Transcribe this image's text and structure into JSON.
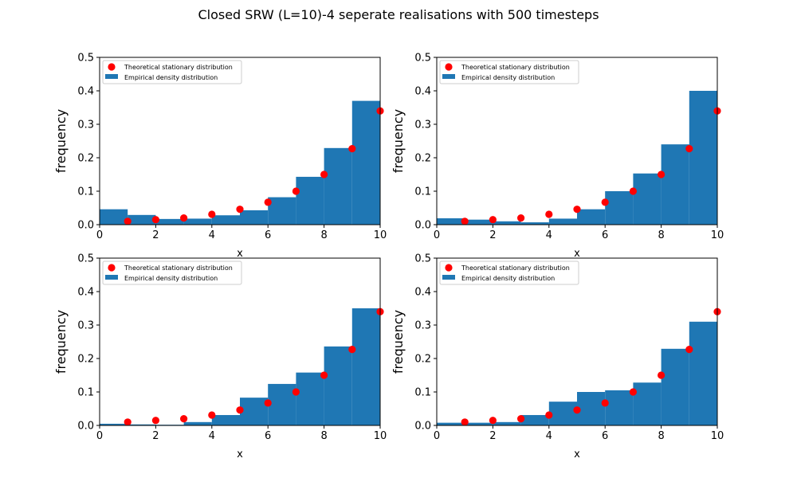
{
  "figure": {
    "title": "Closed SRW (L=10)-4 seperate realisations with 500 timesteps"
  },
  "colors": {
    "bar": "#1f77b4",
    "point": "#ff0000",
    "axis": "#000000"
  },
  "chart_data": [
    {
      "type": "bar",
      "title": "",
      "xlabel": "x",
      "ylabel": "frequency",
      "xlim": [
        0,
        10
      ],
      "ylim": [
        0,
        0.5
      ],
      "xticks": [
        0,
        2,
        4,
        6,
        8,
        10
      ],
      "yticks": [
        0.0,
        0.1,
        0.2,
        0.3,
        0.4,
        0.5
      ],
      "legend": {
        "placement": "top-left",
        "entries": [
          "Theoretical stationary distribution",
          "Empirical density distribution"
        ]
      },
      "bar_edges": [
        0,
        1,
        2,
        3,
        4,
        5,
        6,
        7,
        8,
        9,
        10
      ],
      "bar_heights": [
        0.046,
        0.029,
        0.017,
        0.018,
        0.028,
        0.043,
        0.082,
        0.143,
        0.229,
        0.37
      ],
      "theory_x": [
        1,
        2,
        3,
        4,
        5,
        6,
        7,
        8,
        9,
        10
      ],
      "theory_y": [
        0.01,
        0.015,
        0.02,
        0.031,
        0.046,
        0.067,
        0.1,
        0.15,
        0.227,
        0.34
      ]
    },
    {
      "type": "bar",
      "title": "",
      "xlabel": "x",
      "ylabel": "frequency",
      "xlim": [
        0,
        10
      ],
      "ylim": [
        0,
        0.5
      ],
      "xticks": [
        0,
        2,
        4,
        6,
        8,
        10
      ],
      "yticks": [
        0.0,
        0.1,
        0.2,
        0.3,
        0.4,
        0.5
      ],
      "legend": {
        "placement": "top-left",
        "entries": [
          "Theoretical stationary distribution",
          "Empirical density distribution"
        ]
      },
      "bar_edges": [
        0,
        1,
        2,
        3,
        4,
        5,
        6,
        7,
        8,
        9,
        10
      ],
      "bar_heights": [
        0.019,
        0.015,
        0.01,
        0.007,
        0.018,
        0.046,
        0.1,
        0.153,
        0.24,
        0.4
      ],
      "theory_x": [
        1,
        2,
        3,
        4,
        5,
        6,
        7,
        8,
        9,
        10
      ],
      "theory_y": [
        0.01,
        0.015,
        0.02,
        0.031,
        0.046,
        0.067,
        0.1,
        0.15,
        0.227,
        0.34
      ]
    },
    {
      "type": "bar",
      "title": "",
      "xlabel": "x",
      "ylabel": "frequency",
      "xlim": [
        0,
        10
      ],
      "ylim": [
        0,
        0.5
      ],
      "xticks": [
        0,
        2,
        4,
        6,
        8,
        10
      ],
      "yticks": [
        0.0,
        0.1,
        0.2,
        0.3,
        0.4,
        0.5
      ],
      "legend": {
        "placement": "top-left",
        "entries": [
          "Theoretical stationary distribution",
          "Empirical density distribution"
        ]
      },
      "bar_edges": [
        0,
        1,
        2,
        3,
        4,
        5,
        6,
        7,
        8,
        9,
        10
      ],
      "bar_heights": [
        0.005,
        0.003,
        0.002,
        0.01,
        0.031,
        0.083,
        0.124,
        0.158,
        0.236,
        0.35
      ],
      "theory_x": [
        1,
        2,
        3,
        4,
        5,
        6,
        7,
        8,
        9,
        10
      ],
      "theory_y": [
        0.01,
        0.015,
        0.02,
        0.031,
        0.046,
        0.067,
        0.1,
        0.15,
        0.227,
        0.34
      ]
    },
    {
      "type": "bar",
      "title": "",
      "xlabel": "x",
      "ylabel": "frequency",
      "xlim": [
        0,
        10
      ],
      "ylim": [
        0,
        0.5
      ],
      "xticks": [
        0,
        2,
        4,
        6,
        8,
        10
      ],
      "yticks": [
        0.0,
        0.1,
        0.2,
        0.3,
        0.4,
        0.5
      ],
      "legend": {
        "placement": "top-left",
        "entries": [
          "Theoretical stationary distribution",
          "Empirical density distribution"
        ]
      },
      "bar_edges": [
        0,
        1,
        2,
        3,
        4,
        5,
        6,
        7,
        8,
        9,
        10
      ],
      "bar_heights": [
        0.008,
        0.008,
        0.01,
        0.031,
        0.071,
        0.1,
        0.105,
        0.128,
        0.229,
        0.31
      ],
      "theory_x": [
        1,
        2,
        3,
        4,
        5,
        6,
        7,
        8,
        9,
        10
      ],
      "theory_y": [
        0.01,
        0.015,
        0.02,
        0.031,
        0.046,
        0.067,
        0.1,
        0.15,
        0.227,
        0.34
      ]
    }
  ]
}
